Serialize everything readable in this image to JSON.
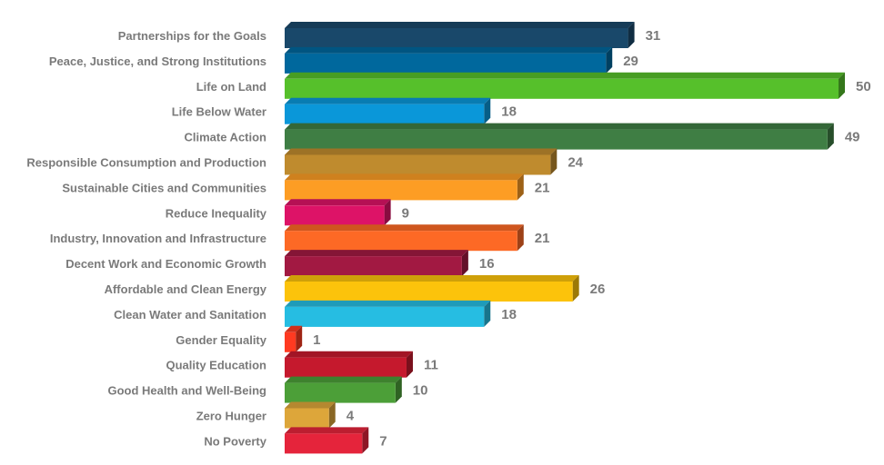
{
  "chart_data": {
    "type": "bar",
    "orientation": "horizontal",
    "title": "",
    "xlabel": "",
    "ylabel": "",
    "xlim": [
      0,
      50
    ],
    "grid": false,
    "legend": "none",
    "categories": [
      "Partnerships for the Goals",
      "Peace, Justice, and Strong Institutions",
      "Life on Land",
      "Life Below Water",
      "Climate Action",
      "Responsible Consumption and Production",
      "Sustainable Cities and Communities",
      "Reduce Inequality",
      "Industry, Innovation and Infrastructure",
      "Decent Work and Economic Growth",
      "Affordable and Clean Energy",
      "Clean Water and Sanitation",
      "Gender Equality",
      "Quality Education",
      "Good Health and Well-Being",
      "Zero Hunger",
      "No Poverty"
    ],
    "values": [
      31,
      29,
      50,
      18,
      49,
      24,
      21,
      9,
      21,
      16,
      26,
      18,
      1,
      11,
      10,
      4,
      7
    ],
    "colors": [
      "#19486a",
      "#00689d",
      "#56c02b",
      "#0a97d9",
      "#3f7e44",
      "#bf8b2e",
      "#fd9d24",
      "#dd1367",
      "#fd6925",
      "#a21942",
      "#fcc30b",
      "#26bde2",
      "#ff3a21",
      "#c5192d",
      "#4c9f38",
      "#dda63a",
      "#e5243b"
    ]
  }
}
